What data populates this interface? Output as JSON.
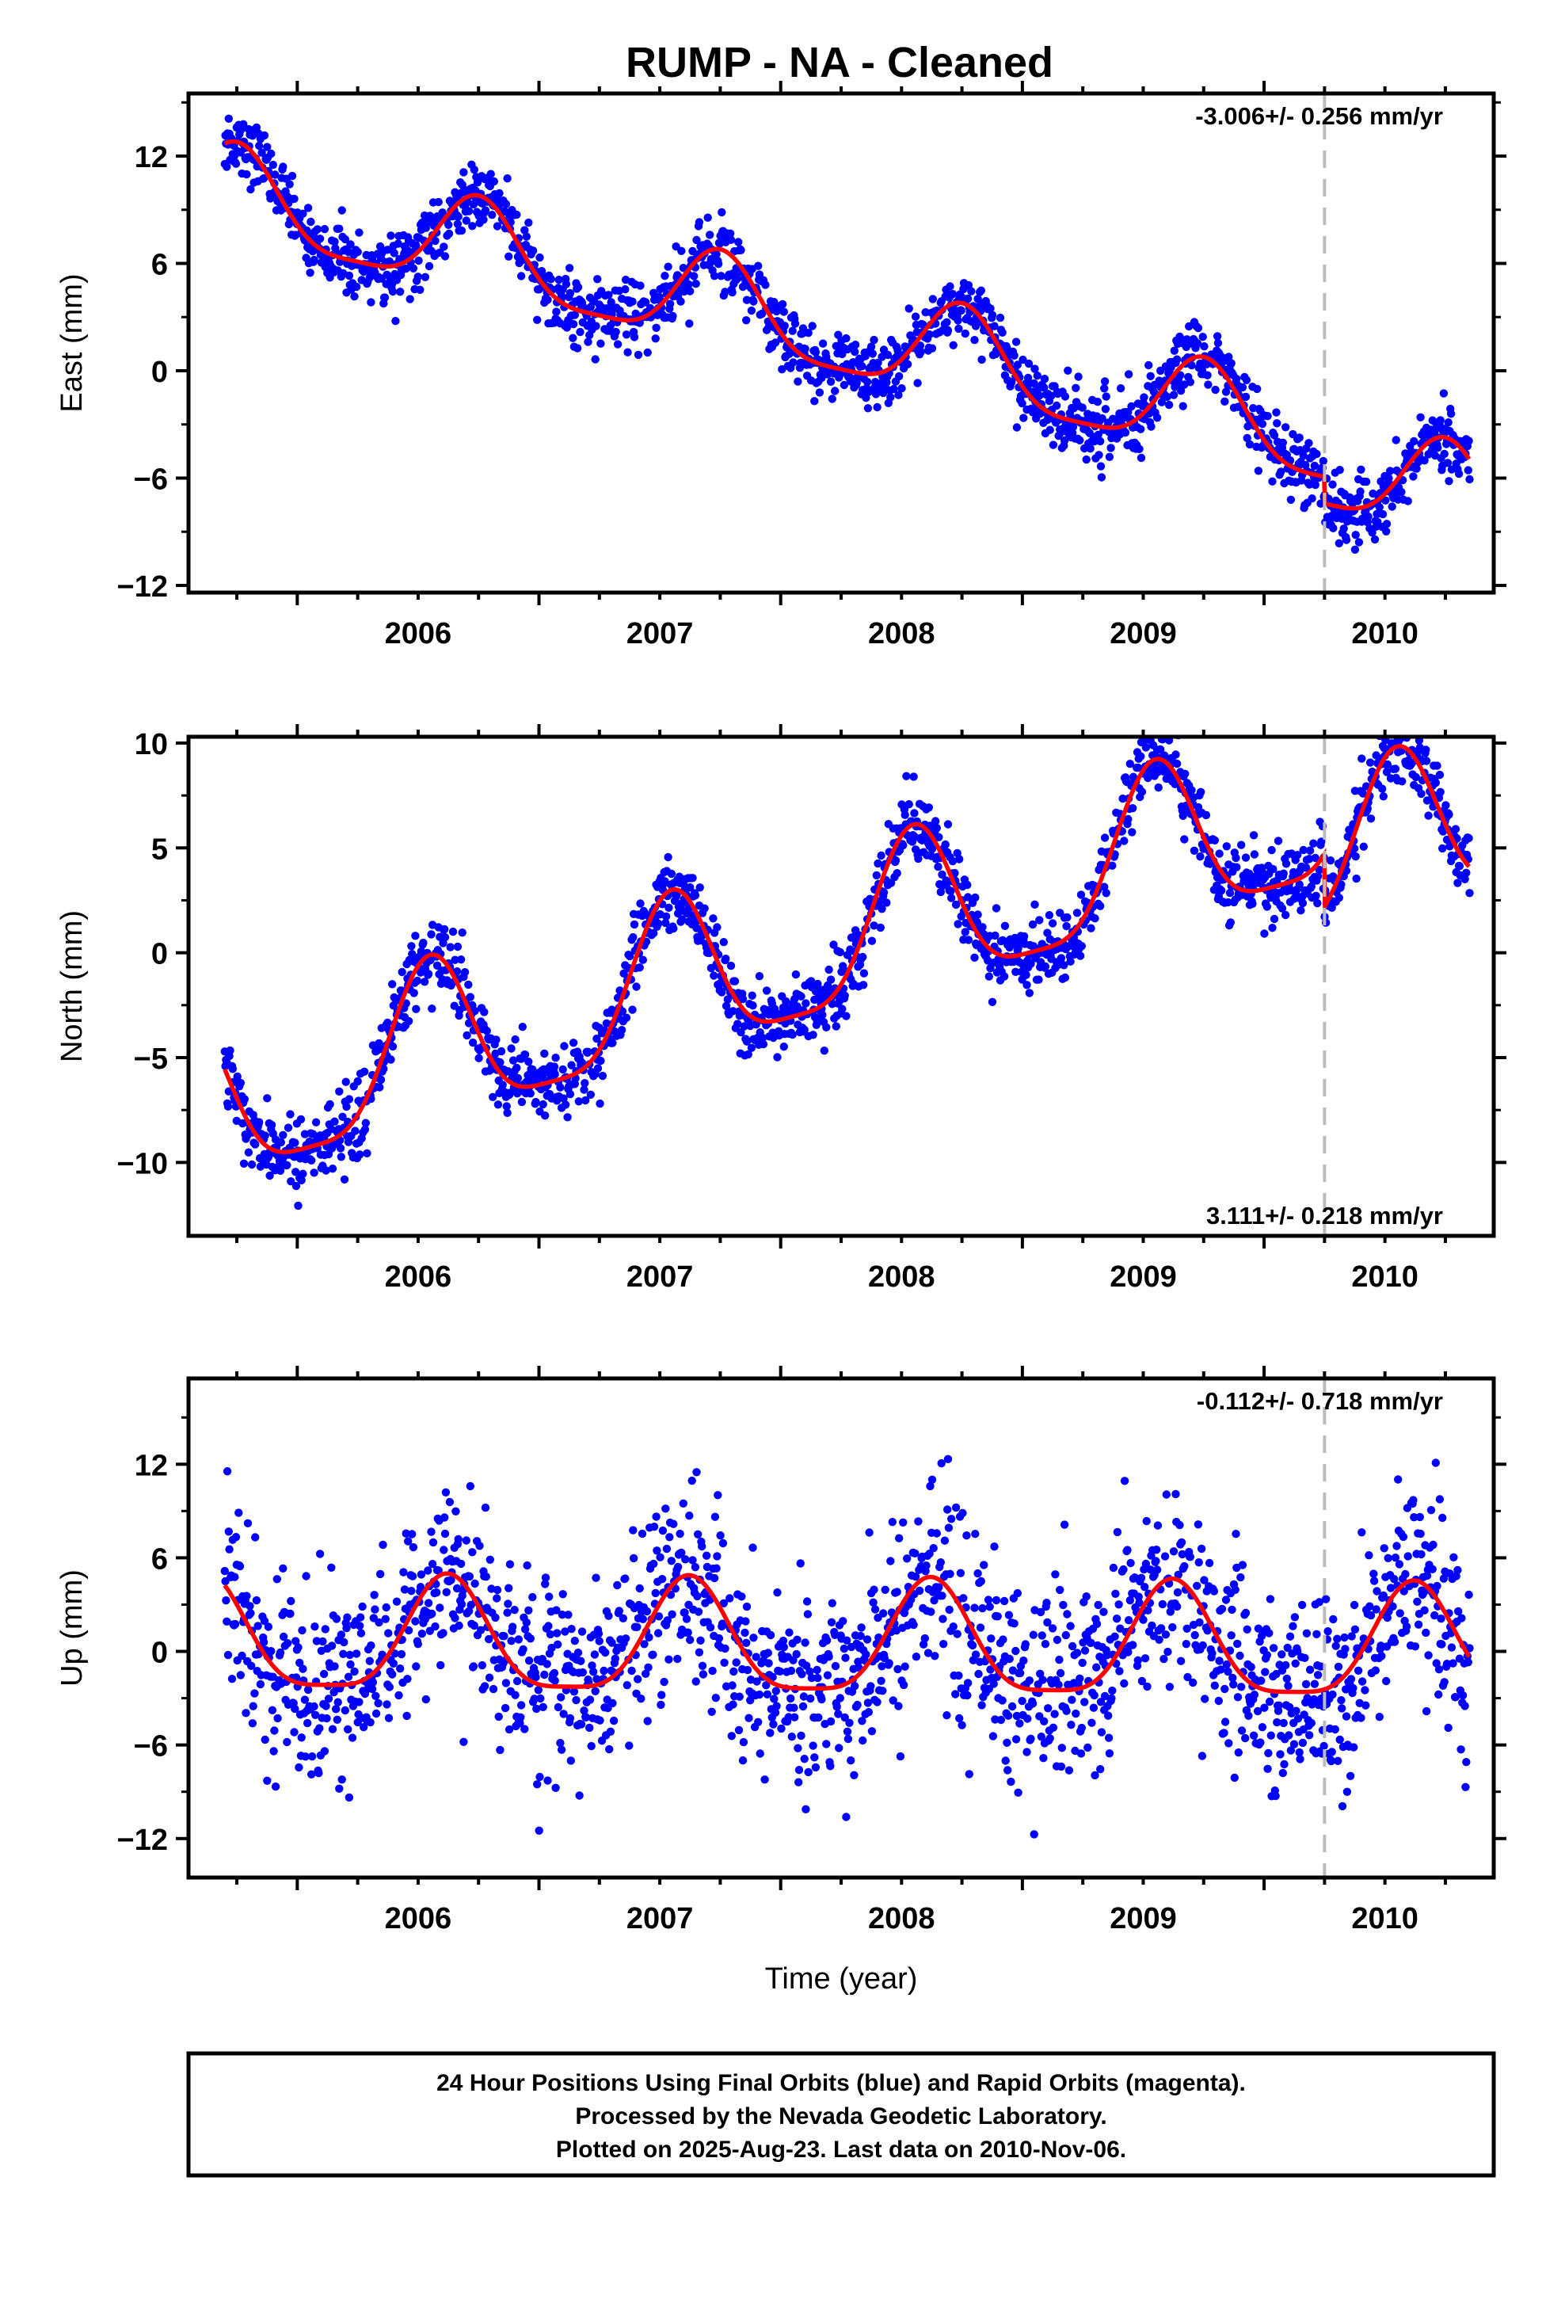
{
  "title": "RUMP  - NA - Cleaned",
  "colors": {
    "final_orbits": "#0000ff",
    "fit": "#ff0000",
    "event_line": "#bbbbbb",
    "frame": "#000000"
  },
  "footer": {
    "line1": "24 Hour Positions Using Final Orbits (blue) and Rapid Orbits (magenta).",
    "line2": "Processed by the Nevada Geodetic Laboratory.",
    "line3": "Plotted on 2025-Aug-23. Last data on 2010-Nov-06."
  },
  "chart_data": [
    {
      "type": "scatter",
      "ylabel": "East (mm)",
      "xlabel": "",
      "rate": "-3.006+/- 0.256 mm/yr",
      "xlim": [
        2005.55,
        2010.95
      ],
      "ylim": [
        -12.4,
        15.5
      ],
      "yticks": [
        -12,
        -6,
        0,
        6,
        12
      ],
      "xticks": [
        2006,
        2007,
        2008,
        2009,
        2010
      ],
      "event_line_x": 2010.25,
      "data_span": [
        2005.7,
        2010.85
      ],
      "fit": {
        "offset": 9.7,
        "trend": -3.006,
        "annual_amp": 2.6,
        "annual_peak": 0.75,
        "noise": 1.1,
        "jump_at": 2010.25,
        "jump": -1.5
      }
    },
    {
      "type": "scatter",
      "ylabel": "North (mm)",
      "xlabel": "",
      "rate": "3.111+/- 0.218 mm/yr",
      "xlim": [
        2005.55,
        2010.95
      ],
      "ylim": [
        -13.5,
        10.3
      ],
      "yticks": [
        -10,
        -5,
        0,
        5,
        10
      ],
      "xticks": [
        2006,
        2007,
        2008,
        2009,
        2010
      ],
      "event_line_x": 2010.25,
      "data_span": [
        2005.7,
        2010.85
      ],
      "fit": {
        "offset": -7.5,
        "trend": 3.111,
        "annual_amp": 3.8,
        "annual_peak": 0.55,
        "noise": 1.0,
        "jump_at": 2010.25,
        "jump": -2.5
      }
    },
    {
      "type": "scatter",
      "ylabel": "Up (mm)",
      "xlabel": "Time (year)",
      "rate": "-0.112+/- 0.718 mm/yr",
      "xlim": [
        2005.55,
        2010.95
      ],
      "ylim": [
        -14.5,
        17.5
      ],
      "yticks": [
        -12,
        -6,
        0,
        6,
        12
      ],
      "xticks": [
        2006,
        2007,
        2008,
        2009,
        2010
      ],
      "event_line_x": 2010.25,
      "data_span": [
        2005.7,
        2010.85
      ],
      "fit": {
        "offset": 0.6,
        "trend": -0.112,
        "annual_amp": 3.6,
        "annual_peak": 0.62,
        "noise": 3.6,
        "jump_at": 2010.25,
        "jump": 0.0
      }
    }
  ]
}
